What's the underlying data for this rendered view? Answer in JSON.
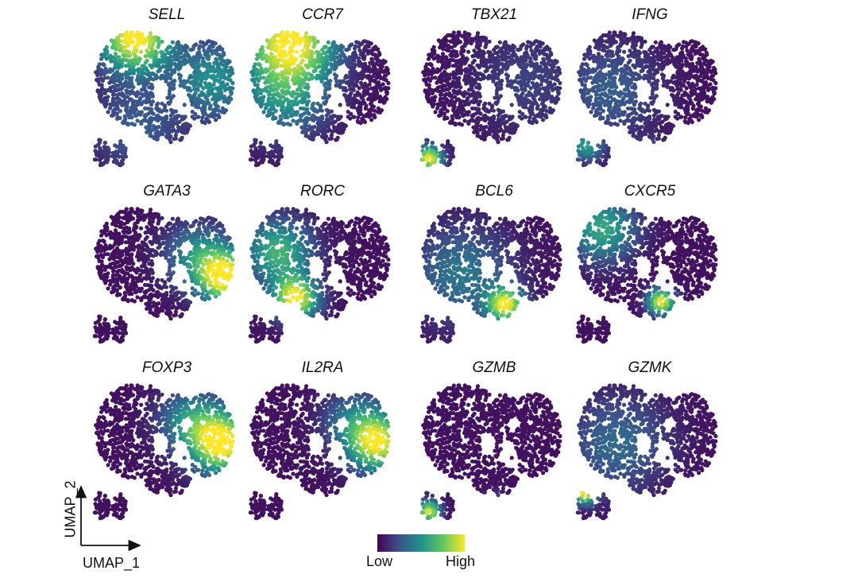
{
  "chart_data": {
    "type": "scatter",
    "panels": [
      {
        "gene": "SELL",
        "hotspots": [
          {
            "cx": 0.3,
            "cy": 0.1,
            "s": 0.16,
            "v": 1.0
          },
          {
            "cx": 0.8,
            "cy": 0.38,
            "s": 0.18,
            "v": 0.45
          },
          {
            "cx": 0.3,
            "cy": 0.7,
            "s": 0.2,
            "v": 0.25
          }
        ]
      },
      {
        "gene": "CCR7",
        "hotspots": [
          {
            "cx": 0.3,
            "cy": 0.12,
            "s": 0.2,
            "v": 0.95
          },
          {
            "cx": 0.25,
            "cy": 0.5,
            "s": 0.2,
            "v": 0.4
          }
        ]
      },
      {
        "gene": "TBX21",
        "hotspots": [
          {
            "cx": 0.09,
            "cy": 0.9,
            "s": 0.06,
            "v": 0.95
          },
          {
            "cx": 0.7,
            "cy": 0.4,
            "s": 0.25,
            "v": 0.15
          }
        ]
      },
      {
        "gene": "IFNG",
        "hotspots": [
          {
            "cx": 0.5,
            "cy": 0.88,
            "s": 0.05,
            "v": 0.9
          },
          {
            "cx": 0.1,
            "cy": 0.82,
            "s": 0.07,
            "v": 0.45
          },
          {
            "cx": 0.25,
            "cy": 0.45,
            "s": 0.22,
            "v": 0.25
          }
        ]
      },
      {
        "gene": "GATA3",
        "hotspots": [
          {
            "cx": 0.87,
            "cy": 0.52,
            "s": 0.12,
            "v": 0.95
          },
          {
            "cx": 0.7,
            "cy": 0.38,
            "s": 0.15,
            "v": 0.45
          }
        ]
      },
      {
        "gene": "RORC",
        "hotspots": [
          {
            "cx": 0.33,
            "cy": 0.66,
            "s": 0.1,
            "v": 0.95
          },
          {
            "cx": 0.22,
            "cy": 0.35,
            "s": 0.15,
            "v": 0.6
          }
        ]
      },
      {
        "gene": "BCL6",
        "hotspots": [
          {
            "cx": 0.57,
            "cy": 0.7,
            "s": 0.08,
            "v": 0.9
          },
          {
            "cx": 0.3,
            "cy": 0.5,
            "s": 0.22,
            "v": 0.35
          }
        ]
      },
      {
        "gene": "CXCR5",
        "hotspots": [
          {
            "cx": 0.57,
            "cy": 0.68,
            "s": 0.06,
            "v": 0.95
          },
          {
            "cx": 0.2,
            "cy": 0.2,
            "s": 0.15,
            "v": 0.55
          }
        ]
      },
      {
        "gene": "FOXP3",
        "hotspots": [
          {
            "cx": 0.85,
            "cy": 0.45,
            "s": 0.14,
            "v": 1.0
          },
          {
            "cx": 0.65,
            "cy": 0.3,
            "s": 0.14,
            "v": 0.45
          }
        ]
      },
      {
        "gene": "IL2RA",
        "hotspots": [
          {
            "cx": 0.85,
            "cy": 0.45,
            "s": 0.13,
            "v": 0.9
          },
          {
            "cx": 0.7,
            "cy": 0.3,
            "s": 0.14,
            "v": 0.35
          }
        ]
      },
      {
        "gene": "GZMB",
        "hotspots": [
          {
            "cx": 0.09,
            "cy": 0.9,
            "s": 0.05,
            "v": 0.9
          },
          {
            "cx": 0.5,
            "cy": 0.85,
            "s": 0.05,
            "v": 0.3
          }
        ]
      },
      {
        "gene": "GZMK",
        "hotspots": [
          {
            "cx": 0.09,
            "cy": 0.78,
            "s": 0.05,
            "v": 0.9
          },
          {
            "cx": 0.3,
            "cy": 0.45,
            "s": 0.22,
            "v": 0.3
          }
        ]
      }
    ],
    "xlabel": "UMAP_1",
    "ylabel": "UMAP_2",
    "colorbar": {
      "low_label": "Low",
      "high_label": "High",
      "colors": [
        "#440154",
        "#3b528b",
        "#21918c",
        "#5ec962",
        "#fde725"
      ]
    }
  }
}
